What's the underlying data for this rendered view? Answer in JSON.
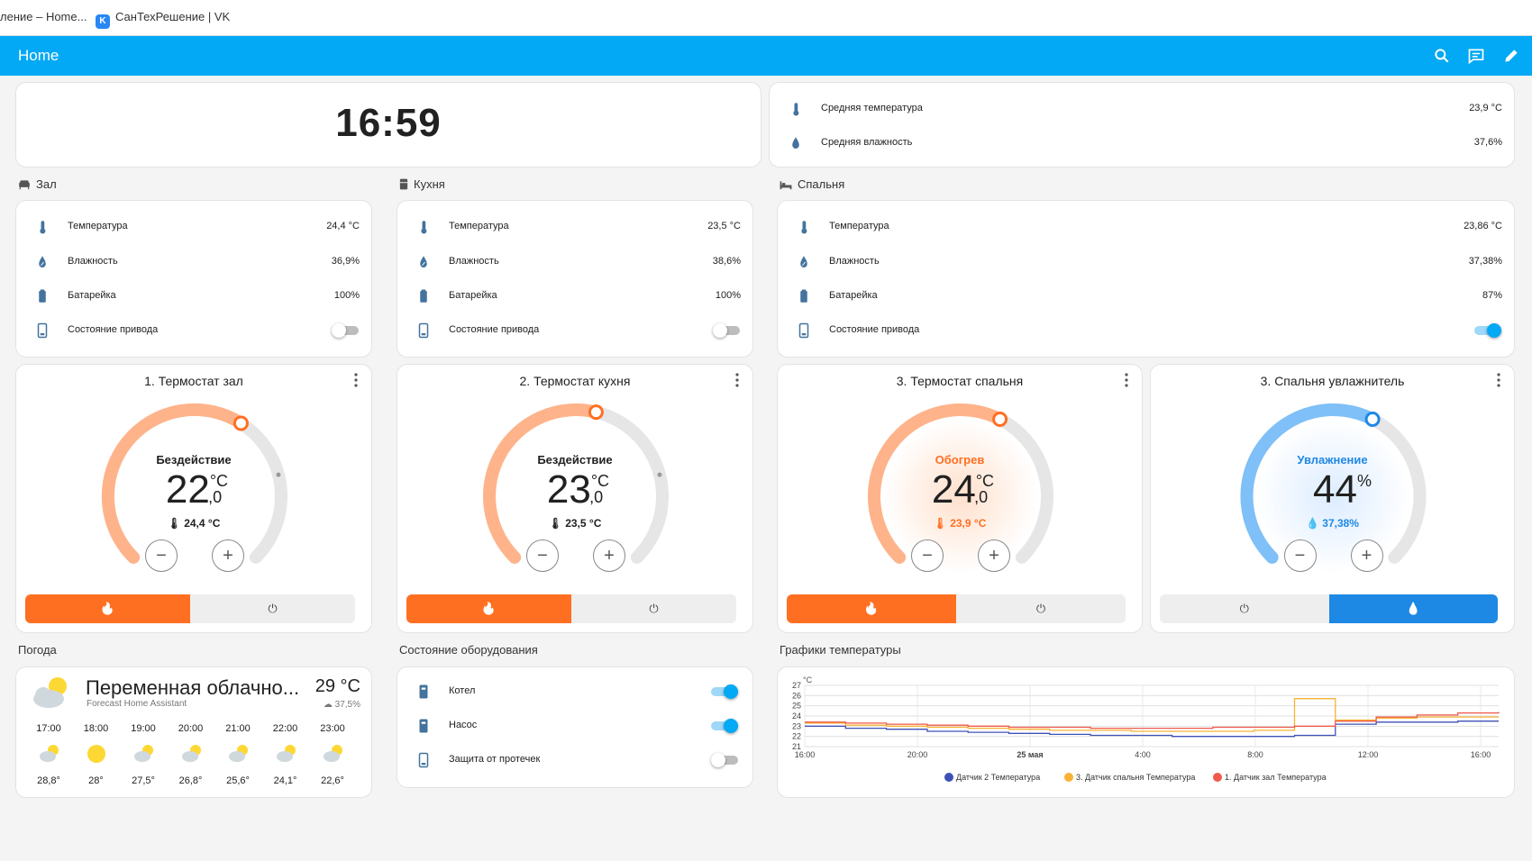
{
  "browser": {
    "tab1": "ление – Home...",
    "tab2": "СанТехРешение | VK"
  },
  "header": {
    "title": "Home"
  },
  "clock": {
    "time": "16:59"
  },
  "averages": {
    "temp_label": "Средняя температура",
    "temp_value": "23,9 °C",
    "hum_label": "Средняя влажность",
    "hum_value": "37,6%"
  },
  "rooms": [
    {
      "name": "Зал",
      "temp_label": "Температура",
      "temp": "24,4 °C",
      "hum_label": "Влажность",
      "hum": "36,9%",
      "bat_label": "Батарейка",
      "bat": "100%",
      "drive_label": "Состояние привода",
      "drive_on": false
    },
    {
      "name": "Кухня",
      "temp_label": "Температура",
      "temp": "23,5 °C",
      "hum_label": "Влажность",
      "hum": "38,6%",
      "bat_label": "Батарейка",
      "bat": "100%",
      "drive_label": "Состояние привода",
      "drive_on": false
    },
    {
      "name": "Спальня",
      "temp_label": "Температура",
      "temp": "23,86 °C",
      "hum_label": "Влажность",
      "hum": "37,38%",
      "bat_label": "Батарейка",
      "bat": "87%",
      "drive_label": "Состояние привода",
      "drive_on": true
    }
  ],
  "thermostats": [
    {
      "title": "1. Термостат зал",
      "mode": "Бездействие",
      "target_int": "22",
      "target_dec": ",0",
      "unit": "°C",
      "current": "24,4 °C"
    },
    {
      "title": "2. Термостат кухня",
      "mode": "Бездействие",
      "target_int": "23",
      "target_dec": ",0",
      "unit": "°C",
      "current": "23,5 °C"
    },
    {
      "title": "3. Термостат спальня",
      "mode": "Обогрев",
      "target_int": "24",
      "target_dec": ",0",
      "unit": "°C",
      "current": "23,9 °C"
    },
    {
      "title": "3. Спальня увлажнитель",
      "mode": "Увлажнение",
      "target_int": "44",
      "target_dec": "",
      "unit": "%",
      "current": "37,38%"
    }
  ],
  "colors": {
    "header": "#03a9f4",
    "heat": "#ff6f22",
    "heat_light": "#ffb38a",
    "humid": "#1e88e5",
    "humid_light": "#7ec0f7",
    "toggle_on": "#03a9f4"
  },
  "sections": {
    "weather": "Погода",
    "equipment": "Состояние оборудования",
    "graphs": "Графики температуры"
  },
  "weather": {
    "condition": "Переменная облачно...",
    "source": "Forecast Home Assistant",
    "temp": "29 °C",
    "humidity": "37,5%",
    "forecast": [
      {
        "time": "17:00",
        "temp": "28,8°",
        "icon": "partly-cloudy"
      },
      {
        "time": "18:00",
        "temp": "28°",
        "icon": "sunny"
      },
      {
        "time": "19:00",
        "temp": "27,5°",
        "icon": "partly-cloudy"
      },
      {
        "time": "20:00",
        "temp": "26,8°",
        "icon": "partly-cloudy"
      },
      {
        "time": "21:00",
        "temp": "25,6°",
        "icon": "partly-cloudy"
      },
      {
        "time": "22:00",
        "temp": "24,1°",
        "icon": "partly-cloudy"
      },
      {
        "time": "23:00",
        "temp": "22,6°",
        "icon": "partly-cloudy"
      }
    ]
  },
  "equipment": [
    {
      "label": "Котел",
      "on": true
    },
    {
      "label": "Насос",
      "on": true
    },
    {
      "label": "Защита от протечек",
      "on": false
    }
  ],
  "chart_data": {
    "type": "line",
    "ylabel": "°C",
    "ylim": [
      21,
      27
    ],
    "yticks": [
      "27",
      "26",
      "25",
      "24",
      "23",
      "22",
      "21"
    ],
    "xticks": [
      "16:00",
      "20:00",
      "25 мая",
      "4:00",
      "8:00",
      "12:00",
      "16:00"
    ],
    "grid": true,
    "legend_position": "bottom",
    "series": [
      {
        "name": "Датчик 2 Температура",
        "color": "#3f51b5",
        "values": [
          23.0,
          22.8,
          22.7,
          22.5,
          22.4,
          22.3,
          22.2,
          22.1,
          22.1,
          22.0,
          22.0,
          22.0,
          22.1,
          23.2,
          23.4,
          23.4,
          23.5,
          23.5
        ]
      },
      {
        "name": "3. Датчик спальня Температура",
        "color": "#f9b233",
        "values": [
          23.3,
          23.1,
          23.0,
          22.9,
          22.8,
          22.7,
          22.6,
          22.6,
          22.5,
          22.5,
          22.5,
          22.6,
          25.7,
          23.6,
          23.8,
          23.9,
          23.9,
          23.9
        ]
      },
      {
        "name": "1. Датчик зал Температура",
        "color": "#ef5a4a",
        "values": [
          23.4,
          23.3,
          23.2,
          23.1,
          23.0,
          22.9,
          22.9,
          22.8,
          22.8,
          22.8,
          22.9,
          22.9,
          23.0,
          23.5,
          23.9,
          24.1,
          24.3,
          24.4
        ]
      }
    ]
  }
}
